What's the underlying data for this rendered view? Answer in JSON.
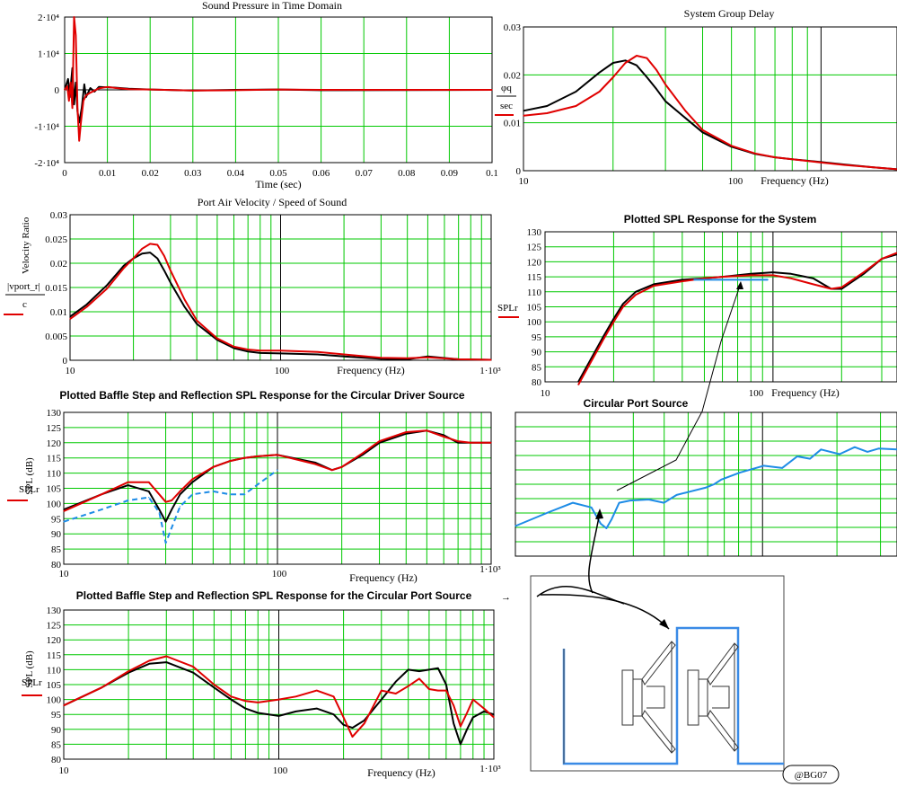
{
  "colors": {
    "grid": "#00c800",
    "red": "#e00000",
    "black": "#000000",
    "blue": "#1e8ce6",
    "maroon": "#8b0000",
    "port_blue": "#3a8be6"
  },
  "charts": {
    "time": {
      "title": "Sound Pressure in Time Domain",
      "xlabel": "Time (sec)",
      "xticks": [
        "0",
        "0.01",
        "0.02",
        "0.03",
        "0.04",
        "0.05",
        "0.06",
        "0.07",
        "0.08",
        "0.09",
        "0.1"
      ],
      "yticks": [
        "2·10⁴",
        "1·10⁴",
        "0",
        "-1·10⁴",
        "-2·10⁴"
      ]
    },
    "gd": {
      "title": "System Group Delay",
      "xlabel": "Frequency (Hz)",
      "ylabel_top": "φq",
      "ylabel_bottom": "sec",
      "xticks": [
        "10",
        "100"
      ],
      "yticks": [
        "0.03",
        "0.02",
        "0.01",
        "0"
      ]
    },
    "vel": {
      "title": "Port Air Velocity / Speed of Sound",
      "ylabel_rot": "Velocity Ratio",
      "ylabel_num": "|vport_r|",
      "ylabel_den": "c",
      "xlabel": "Frequency (Hz)",
      "xticks": [
        "10",
        "100",
        "1·10³"
      ],
      "yticks": [
        "0.03",
        "0.025",
        "0.02",
        "0.015",
        "0.01",
        "0.005",
        "0"
      ]
    },
    "spl": {
      "title": "Plotted SPL Response for the System",
      "ylabel": "SPLr",
      "xlabel": "Frequency (Hz)",
      "xticks": [
        "10",
        "100"
      ],
      "yticks": [
        "130",
        "125",
        "120",
        "115",
        "110",
        "105",
        "100",
        "95",
        "90",
        "85",
        "80"
      ]
    },
    "driver": {
      "title": "Plotted Baffle Step and Reflection SPL Response for the Circular Driver Source",
      "ylabel": "SPL (dB)",
      "ylabel2": "SPLr",
      "xlabel": "Frequency (Hz)",
      "xticks": [
        "10",
        "100",
        "1·10³"
      ],
      "yticks": [
        "130",
        "125",
        "120",
        "115",
        "110",
        "105",
        "100",
        "95",
        "90",
        "85",
        "80"
      ]
    },
    "portsrc": {
      "title": "Circular Port Source"
    },
    "portbaffle": {
      "title": "Plotted Baffle Step and Reflection SPL Response for the Circular Port Source",
      "ylabel": "SPL (dB)",
      "ylabel2": "SPLr",
      "xlabel": "Frequency (Hz)",
      "xticks": [
        "10",
        "100",
        "1·10³"
      ],
      "yticks": [
        "130",
        "125",
        "120",
        "115",
        "110",
        "105",
        "100",
        "95",
        "90",
        "85",
        "80"
      ]
    }
  },
  "arrow_label": "→",
  "watermark": "@BG07",
  "chart_data": [
    {
      "type": "line",
      "title": "Sound Pressure in Time Domain",
      "xlabel": "Time (sec)",
      "xlim": [
        0,
        0.1
      ],
      "ylim": [
        -20000,
        20000
      ],
      "series": [
        {
          "color": "black",
          "x": [
            0,
            0.0008,
            0.0012,
            0.0018,
            0.0022,
            0.0026,
            0.003,
            0.0034,
            0.004,
            0.0046,
            0.005,
            0.006,
            0.007,
            0.008,
            0.01,
            0.012,
            0.015,
            0.02,
            0.03,
            0.04,
            0.05,
            0.06,
            0.1
          ],
          "y": [
            0,
            3000,
            -2000,
            6000,
            -4000,
            2000,
            -6000,
            -9000,
            -5000,
            1500,
            -2000,
            500,
            -500,
            800,
            700,
            600,
            300,
            100,
            -200,
            0,
            100,
            -100,
            0
          ]
        },
        {
          "color": "red",
          "x": [
            0,
            0.0006,
            0.001,
            0.0014,
            0.0018,
            0.0022,
            0.0026,
            0.003,
            0.0034,
            0.0038,
            0.0044,
            0.005,
            0.006,
            0.007,
            0.008,
            0.01,
            0.012,
            0.015,
            0.02,
            0.03,
            0.04,
            0.05,
            0.06,
            0.1
          ],
          "y": [
            0,
            1000,
            -3000,
            2000,
            -5000,
            20000,
            15000,
            -5000,
            -14000,
            -9000,
            -3000,
            -1500,
            -800,
            -200,
            400,
            800,
            500,
            200,
            100,
            -200,
            -100,
            100,
            0,
            0
          ]
        }
      ]
    },
    {
      "type": "line",
      "title": "System Group Delay",
      "xscale": "log",
      "xlim": [
        10,
        180
      ],
      "ylim": [
        0,
        0.03
      ],
      "series": [
        {
          "color": "black",
          "x": [
            10,
            12,
            15,
            18,
            20,
            22,
            24,
            26,
            28,
            30,
            35,
            40,
            50,
            60,
            70,
            80,
            100,
            120,
            150,
            180
          ],
          "y": [
            0.0125,
            0.0135,
            0.0165,
            0.0205,
            0.0225,
            0.023,
            0.022,
            0.0195,
            0.017,
            0.0145,
            0.011,
            0.008,
            0.005,
            0.0035,
            0.0028,
            0.0024,
            0.0018,
            0.0013,
            0.0007,
            0.0003
          ]
        },
        {
          "color": "red",
          "x": [
            10,
            12,
            15,
            18,
            20,
            22,
            24,
            26,
            28,
            30,
            35,
            40,
            50,
            60,
            70,
            80,
            100,
            120,
            150,
            180
          ],
          "y": [
            0.0115,
            0.012,
            0.0135,
            0.0165,
            0.0195,
            0.0225,
            0.024,
            0.0235,
            0.021,
            0.018,
            0.0125,
            0.0085,
            0.0052,
            0.0036,
            0.0028,
            0.0024,
            0.0017,
            0.0012,
            0.0007,
            0.0003
          ]
        }
      ]
    },
    {
      "type": "line",
      "title": "Port Air Velocity / Speed of Sound",
      "xscale": "log",
      "xlim": [
        10,
        1000
      ],
      "ylim": [
        0,
        0.03
      ],
      "series": [
        {
          "color": "black",
          "x": [
            10,
            12,
            15,
            18,
            20,
            22,
            24,
            26,
            28,
            30,
            35,
            40,
            50,
            60,
            70,
            80,
            100,
            150,
            200,
            300,
            400,
            500,
            700,
            1000
          ],
          "y": [
            0.009,
            0.0115,
            0.0155,
            0.0195,
            0.021,
            0.022,
            0.0222,
            0.021,
            0.0185,
            0.016,
            0.011,
            0.0075,
            0.0042,
            0.0025,
            0.0018,
            0.0015,
            0.0014,
            0.0012,
            0.0008,
            0.0003,
            0.0002,
            0.0008,
            0.0002,
            0.0001
          ]
        },
        {
          "color": "red",
          "x": [
            10,
            12,
            15,
            18,
            20,
            22,
            24,
            26,
            28,
            30,
            35,
            40,
            50,
            60,
            70,
            80,
            100,
            150,
            200,
            300,
            400,
            500,
            700,
            1000
          ],
          "y": [
            0.0085,
            0.011,
            0.0148,
            0.019,
            0.021,
            0.023,
            0.024,
            0.0238,
            0.0215,
            0.0185,
            0.0125,
            0.0082,
            0.0045,
            0.0028,
            0.0022,
            0.002,
            0.002,
            0.0017,
            0.0012,
            0.0005,
            0.0004,
            0.0006,
            0.0002,
            0.0001
          ]
        }
      ]
    },
    {
      "type": "line",
      "title": "Plotted SPL Response for the System",
      "xscale": "log",
      "xlim": [
        10,
        350
      ],
      "ylim": [
        80,
        130
      ],
      "series": [
        {
          "color": "black",
          "x": [
            14,
            16,
            18,
            20,
            22,
            25,
            30,
            40,
            50,
            60,
            80,
            100,
            120,
            150,
            180,
            200,
            250,
            300,
            350
          ],
          "y": [
            80,
            88,
            95,
            101,
            106,
            110,
            112.5,
            114,
            114.5,
            115,
            116,
            116.5,
            116,
            114.5,
            111,
            111,
            116,
            121,
            122.5
          ]
        },
        {
          "color": "red",
          "x": [
            14,
            16,
            18,
            20,
            22,
            25,
            30,
            40,
            50,
            60,
            80,
            100,
            120,
            150,
            180,
            200,
            250,
            300,
            350
          ],
          "y": [
            79,
            87,
            94,
            100,
            105,
            109,
            112,
            113.5,
            114.5,
            115,
            115.5,
            115.5,
            114.5,
            112.5,
            111,
            111.5,
            116.5,
            121,
            123
          ]
        },
        {
          "color": "blue",
          "x": [
            45,
            95
          ],
          "y": [
            114,
            114
          ]
        }
      ]
    },
    {
      "type": "line",
      "title": "Plotted Baffle Step and Reflection SPL Response for the Circular Driver Source",
      "xscale": "log",
      "xlim": [
        10,
        1000
      ],
      "ylim": [
        80,
        130
      ],
      "series": [
        {
          "color": "black",
          "x": [
            10,
            15,
            20,
            25,
            28,
            30,
            32,
            35,
            40,
            50,
            60,
            70,
            80,
            100,
            150,
            180,
            200,
            250,
            300,
            400,
            500,
            600,
            700,
            800,
            1000
          ],
          "y": [
            98,
            103,
            106,
            104,
            98,
            94,
            98,
            103,
            107,
            112,
            114,
            115,
            115.5,
            116,
            113.5,
            111,
            112,
            116,
            120,
            123,
            124,
            122.5,
            120,
            120,
            120
          ]
        },
        {
          "color": "red",
          "x": [
            10,
            15,
            20,
            25,
            28,
            30,
            32,
            35,
            40,
            50,
            60,
            70,
            80,
            100,
            150,
            180,
            200,
            250,
            300,
            400,
            500,
            600,
            700,
            800,
            1000
          ],
          "y": [
            97.5,
            103,
            107,
            107,
            103,
            100.5,
            101,
            104,
            108,
            112,
            114,
            115,
            115.5,
            116,
            113,
            111,
            112,
            116.5,
            120.5,
            123.5,
            124,
            122,
            120.5,
            120,
            120
          ]
        },
        {
          "color": "blue",
          "dashed": true,
          "x": [
            10,
            15,
            20,
            25,
            28,
            30,
            32,
            35,
            40,
            50,
            60,
            70,
            80,
            100
          ],
          "y": [
            94,
            98,
            101,
            102,
            97,
            87,
            92,
            99,
            103,
            104,
            103,
            103,
            106,
            111
          ]
        }
      ]
    },
    {
      "type": "line",
      "title": "Circular Port Source",
      "series": [
        {
          "color": "blue",
          "name": "",
          "x": [
            10,
            15,
            20,
            25,
            28,
            30,
            32,
            35,
            40,
            50,
            60,
            70,
            80,
            100,
            110,
            120,
            150,
            200,
            250,
            300,
            350,
            400,
            500,
            600,
            700,
            800,
            1000
          ],
          "y": [
            0.05,
            0.35,
            0.55,
            0.45,
            0.1,
            0.0,
            0.2,
            0.55,
            0.6,
            0.62,
            0.55,
            0.72,
            0.78,
            0.88,
            0.95,
            1.05,
            1.2,
            1.35,
            1.3,
            1.55,
            1.5,
            1.7,
            1.6,
            1.75,
            1.65,
            1.72,
            1.7
          ]
        }
      ]
    },
    {
      "type": "line",
      "title": "Plotted Baffle Step and Reflection SPL Response for the Circular Port Source",
      "xscale": "log",
      "xlim": [
        10,
        1000
      ],
      "ylim": [
        80,
        130
      ],
      "series": [
        {
          "color": "black",
          "x": [
            10,
            15,
            20,
            25,
            30,
            40,
            50,
            60,
            70,
            80,
            100,
            120,
            150,
            180,
            200,
            220,
            250,
            300,
            350,
            400,
            450,
            500,
            550,
            600,
            650,
            700,
            750,
            800,
            900,
            1000
          ],
          "y": [
            98,
            104,
            109,
            112,
            112.5,
            109,
            104,
            100,
            97,
            95.5,
            94.5,
            96,
            97,
            95,
            91.5,
            90.5,
            93,
            100,
            106,
            110,
            109.5,
            110,
            110.5,
            105,
            92,
            85,
            90,
            94,
            96,
            95
          ]
        },
        {
          "color": "red",
          "x": [
            10,
            15,
            20,
            25,
            30,
            40,
            50,
            60,
            70,
            80,
            100,
            120,
            150,
            180,
            200,
            220,
            250,
            300,
            350,
            400,
            450,
            500,
            550,
            600,
            650,
            700,
            750,
            800,
            900,
            1000
          ],
          "y": [
            98,
            104,
            109.5,
            113,
            114.5,
            111,
            105,
            101,
            99.5,
            99,
            100,
            101,
            103,
            101,
            94,
            87.5,
            92,
            103,
            102,
            104.5,
            107,
            103.5,
            103,
            103,
            98,
            91,
            95.5,
            100,
            97,
            94
          ]
        }
      ]
    }
  ]
}
